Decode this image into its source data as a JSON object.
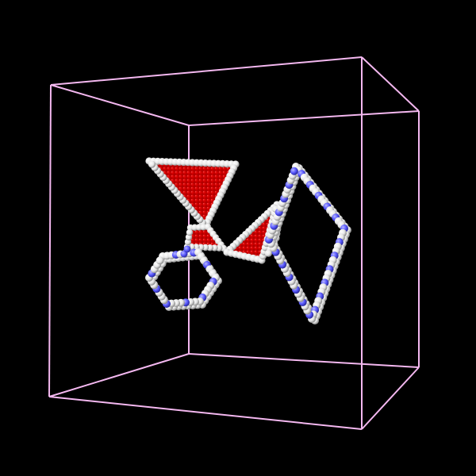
{
  "scene": {
    "background": "#000000",
    "box_color": "#f4b8f0",
    "bead_colors": {
      "shell": "#f2f2f2",
      "shell_dark": "#a8a8a8",
      "linker": "#5b5bff",
      "core": "#cc0000"
    },
    "objects": [
      {
        "name": "red-triangle-large",
        "kind": "triangular-plate"
      },
      {
        "name": "red-triangle-small-left",
        "kind": "triangular-plate"
      },
      {
        "name": "red-triangle-small-right",
        "kind": "triangular-plate"
      },
      {
        "name": "hexagon-ring",
        "kind": "bead-ring"
      },
      {
        "name": "rhombus-ring",
        "kind": "bead-ring"
      }
    ]
  }
}
